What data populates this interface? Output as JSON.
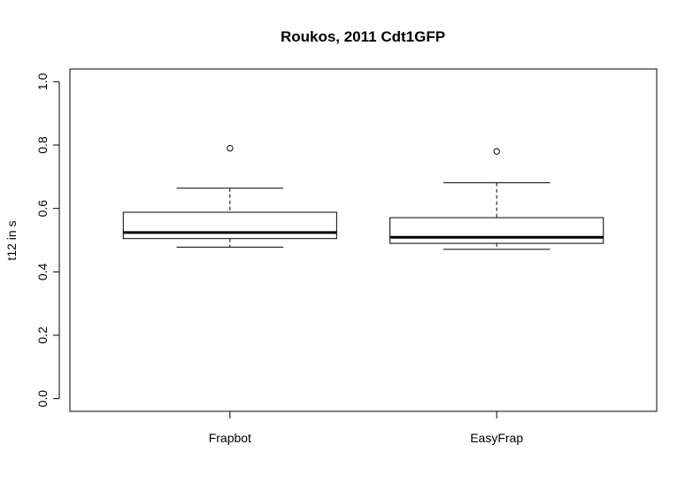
{
  "chart_data": {
    "type": "box",
    "title": "Roukos, 2011 Cdt1GFP",
    "xlabel": "",
    "ylabel": "t12 in s",
    "ylim": [
      -0.04,
      1.04
    ],
    "yticks": [
      "0.0",
      "0.2",
      "0.4",
      "0.6",
      "0.8",
      "1.0"
    ],
    "grid": false,
    "categories": [
      "Frapbot",
      "EasyFrap"
    ],
    "boxes": [
      {
        "category": "Frapbot",
        "whisker_low": 0.478,
        "q1": 0.505,
        "median": 0.524,
        "q3": 0.588,
        "whisker_high": 0.664,
        "outliers": [
          0.79
        ]
      },
      {
        "category": "EasyFrap",
        "whisker_low": 0.471,
        "q1": 0.49,
        "median": 0.509,
        "q3": 0.571,
        "whisker_high": 0.681,
        "outliers": [
          0.78
        ]
      }
    ]
  }
}
